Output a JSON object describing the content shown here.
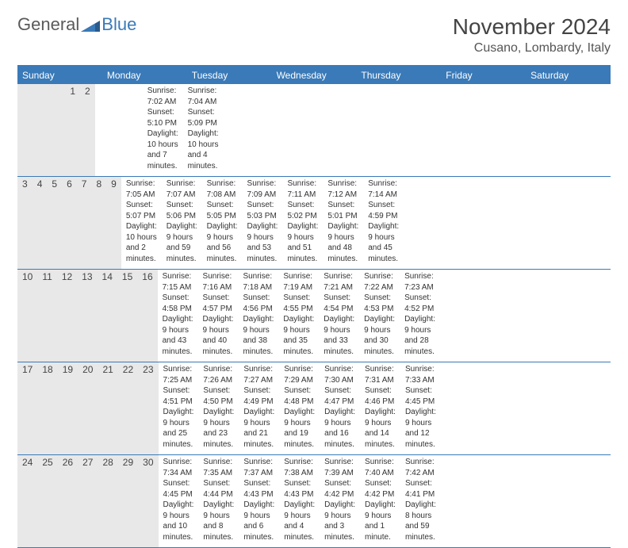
{
  "logo": {
    "general": "General",
    "blue": "Blue"
  },
  "title": "November 2024",
  "location": "Cusano, Lombardy, Italy",
  "colors": {
    "header_bg": "#3a7ab8",
    "daynum_bg": "#e8e8e8",
    "border": "#3a7ab8",
    "text": "#333333",
    "background": "#ffffff"
  },
  "day_headers": [
    "Sunday",
    "Monday",
    "Tuesday",
    "Wednesday",
    "Thursday",
    "Friday",
    "Saturday"
  ],
  "weeks": [
    [
      {
        "num": "",
        "sunrise": "",
        "sunset": "",
        "daylight": ""
      },
      {
        "num": "",
        "sunrise": "",
        "sunset": "",
        "daylight": ""
      },
      {
        "num": "",
        "sunrise": "",
        "sunset": "",
        "daylight": ""
      },
      {
        "num": "",
        "sunrise": "",
        "sunset": "",
        "daylight": ""
      },
      {
        "num": "",
        "sunrise": "",
        "sunset": "",
        "daylight": ""
      },
      {
        "num": "1",
        "sunrise": "Sunrise: 7:02 AM",
        "sunset": "Sunset: 5:10 PM",
        "daylight": "Daylight: 10 hours and 7 minutes."
      },
      {
        "num": "2",
        "sunrise": "Sunrise: 7:04 AM",
        "sunset": "Sunset: 5:09 PM",
        "daylight": "Daylight: 10 hours and 4 minutes."
      }
    ],
    [
      {
        "num": "3",
        "sunrise": "Sunrise: 7:05 AM",
        "sunset": "Sunset: 5:07 PM",
        "daylight": "Daylight: 10 hours and 2 minutes."
      },
      {
        "num": "4",
        "sunrise": "Sunrise: 7:07 AM",
        "sunset": "Sunset: 5:06 PM",
        "daylight": "Daylight: 9 hours and 59 minutes."
      },
      {
        "num": "5",
        "sunrise": "Sunrise: 7:08 AM",
        "sunset": "Sunset: 5:05 PM",
        "daylight": "Daylight: 9 hours and 56 minutes."
      },
      {
        "num": "6",
        "sunrise": "Sunrise: 7:09 AM",
        "sunset": "Sunset: 5:03 PM",
        "daylight": "Daylight: 9 hours and 53 minutes."
      },
      {
        "num": "7",
        "sunrise": "Sunrise: 7:11 AM",
        "sunset": "Sunset: 5:02 PM",
        "daylight": "Daylight: 9 hours and 51 minutes."
      },
      {
        "num": "8",
        "sunrise": "Sunrise: 7:12 AM",
        "sunset": "Sunset: 5:01 PM",
        "daylight": "Daylight: 9 hours and 48 minutes."
      },
      {
        "num": "9",
        "sunrise": "Sunrise: 7:14 AM",
        "sunset": "Sunset: 4:59 PM",
        "daylight": "Daylight: 9 hours and 45 minutes."
      }
    ],
    [
      {
        "num": "10",
        "sunrise": "Sunrise: 7:15 AM",
        "sunset": "Sunset: 4:58 PM",
        "daylight": "Daylight: 9 hours and 43 minutes."
      },
      {
        "num": "11",
        "sunrise": "Sunrise: 7:16 AM",
        "sunset": "Sunset: 4:57 PM",
        "daylight": "Daylight: 9 hours and 40 minutes."
      },
      {
        "num": "12",
        "sunrise": "Sunrise: 7:18 AM",
        "sunset": "Sunset: 4:56 PM",
        "daylight": "Daylight: 9 hours and 38 minutes."
      },
      {
        "num": "13",
        "sunrise": "Sunrise: 7:19 AM",
        "sunset": "Sunset: 4:55 PM",
        "daylight": "Daylight: 9 hours and 35 minutes."
      },
      {
        "num": "14",
        "sunrise": "Sunrise: 7:21 AM",
        "sunset": "Sunset: 4:54 PM",
        "daylight": "Daylight: 9 hours and 33 minutes."
      },
      {
        "num": "15",
        "sunrise": "Sunrise: 7:22 AM",
        "sunset": "Sunset: 4:53 PM",
        "daylight": "Daylight: 9 hours and 30 minutes."
      },
      {
        "num": "16",
        "sunrise": "Sunrise: 7:23 AM",
        "sunset": "Sunset: 4:52 PM",
        "daylight": "Daylight: 9 hours and 28 minutes."
      }
    ],
    [
      {
        "num": "17",
        "sunrise": "Sunrise: 7:25 AM",
        "sunset": "Sunset: 4:51 PM",
        "daylight": "Daylight: 9 hours and 25 minutes."
      },
      {
        "num": "18",
        "sunrise": "Sunrise: 7:26 AM",
        "sunset": "Sunset: 4:50 PM",
        "daylight": "Daylight: 9 hours and 23 minutes."
      },
      {
        "num": "19",
        "sunrise": "Sunrise: 7:27 AM",
        "sunset": "Sunset: 4:49 PM",
        "daylight": "Daylight: 9 hours and 21 minutes."
      },
      {
        "num": "20",
        "sunrise": "Sunrise: 7:29 AM",
        "sunset": "Sunset: 4:48 PM",
        "daylight": "Daylight: 9 hours and 19 minutes."
      },
      {
        "num": "21",
        "sunrise": "Sunrise: 7:30 AM",
        "sunset": "Sunset: 4:47 PM",
        "daylight": "Daylight: 9 hours and 16 minutes."
      },
      {
        "num": "22",
        "sunrise": "Sunrise: 7:31 AM",
        "sunset": "Sunset: 4:46 PM",
        "daylight": "Daylight: 9 hours and 14 minutes."
      },
      {
        "num": "23",
        "sunrise": "Sunrise: 7:33 AM",
        "sunset": "Sunset: 4:45 PM",
        "daylight": "Daylight: 9 hours and 12 minutes."
      }
    ],
    [
      {
        "num": "24",
        "sunrise": "Sunrise: 7:34 AM",
        "sunset": "Sunset: 4:45 PM",
        "daylight": "Daylight: 9 hours and 10 minutes."
      },
      {
        "num": "25",
        "sunrise": "Sunrise: 7:35 AM",
        "sunset": "Sunset: 4:44 PM",
        "daylight": "Daylight: 9 hours and 8 minutes."
      },
      {
        "num": "26",
        "sunrise": "Sunrise: 7:37 AM",
        "sunset": "Sunset: 4:43 PM",
        "daylight": "Daylight: 9 hours and 6 minutes."
      },
      {
        "num": "27",
        "sunrise": "Sunrise: 7:38 AM",
        "sunset": "Sunset: 4:43 PM",
        "daylight": "Daylight: 9 hours and 4 minutes."
      },
      {
        "num": "28",
        "sunrise": "Sunrise: 7:39 AM",
        "sunset": "Sunset: 4:42 PM",
        "daylight": "Daylight: 9 hours and 3 minutes."
      },
      {
        "num": "29",
        "sunrise": "Sunrise: 7:40 AM",
        "sunset": "Sunset: 4:42 PM",
        "daylight": "Daylight: 9 hours and 1 minute."
      },
      {
        "num": "30",
        "sunrise": "Sunrise: 7:42 AM",
        "sunset": "Sunset: 4:41 PM",
        "daylight": "Daylight: 8 hours and 59 minutes."
      }
    ]
  ]
}
